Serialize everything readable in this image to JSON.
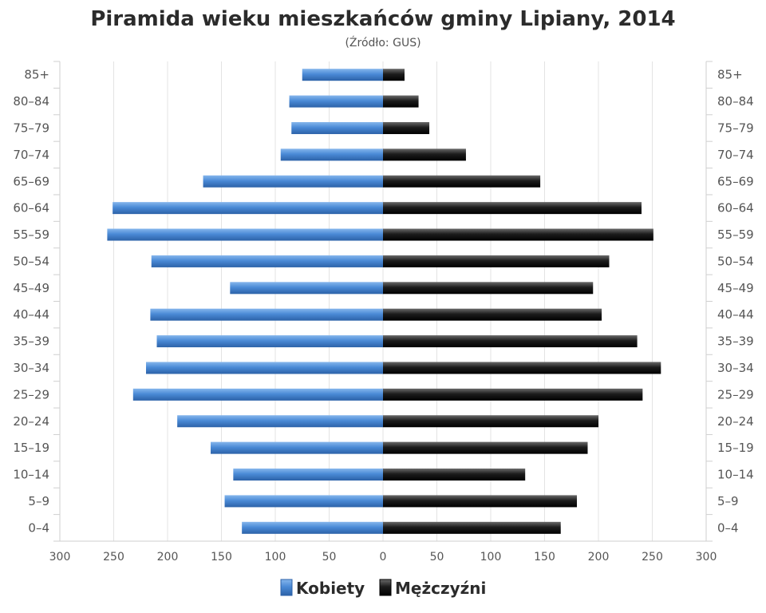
{
  "chart_data": {
    "type": "bar",
    "orientation": "horizontal-pyramid",
    "title": "Piramida wieku mieszkańców gminy Lipiany, 2014",
    "subtitle": "(Źródło: GUS)",
    "categories": [
      "85+",
      "80–84",
      "75–79",
      "70–74",
      "65–69",
      "60–64",
      "55–59",
      "50–54",
      "45–49",
      "40–44",
      "35–39",
      "30–34",
      "25–29",
      "20–24",
      "15–19",
      "10–14",
      "5–9",
      "0–4"
    ],
    "series": [
      {
        "name": "Kobiety",
        "color": "#3f7fcc",
        "side": "left",
        "values": [
          75,
          87,
          85,
          95,
          167,
          251,
          256,
          215,
          142,
          216,
          210,
          220,
          232,
          191,
          160,
          139,
          147,
          131
        ]
      },
      {
        "name": "Mężczyźni",
        "color": "#1a1a1a",
        "side": "right",
        "values": [
          20,
          33,
          43,
          77,
          146,
          240,
          251,
          210,
          195,
          203,
          236,
          258,
          241,
          200,
          190,
          132,
          180,
          165
        ]
      }
    ],
    "xlim": [
      -300,
      300
    ],
    "x_ticks": [
      "300",
      "250",
      "200",
      "150",
      "100",
      "50",
      "0",
      "50",
      "100",
      "150",
      "200",
      "250",
      "300"
    ],
    "grid": true,
    "legend_position": "bottom"
  }
}
